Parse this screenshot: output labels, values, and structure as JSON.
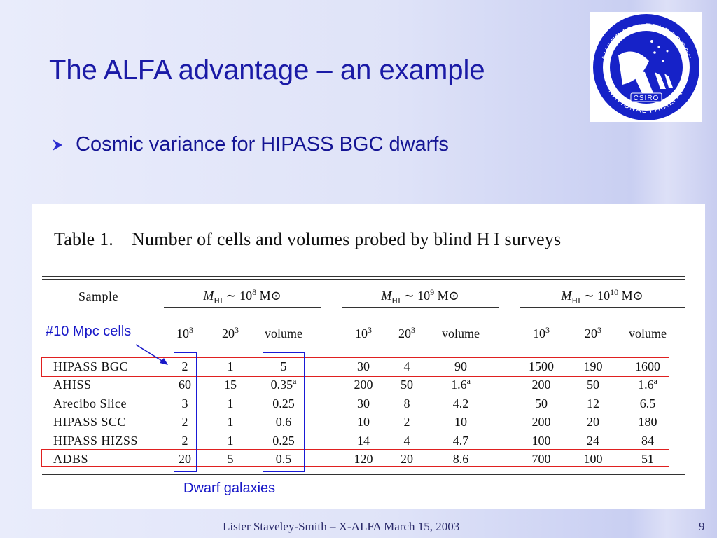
{
  "slide": {
    "title": "The ALFA advantage – an example",
    "bullet": "Cosmic variance for HIPASS BGC dwarfs",
    "footer": "Lister Staveley-Smith – X-ALFA March 15, 2003",
    "page_number": "9"
  },
  "logo": {
    "top_text": "AUSTRALIA TELESCOPE",
    "bottom_text": "NATIONAL FACILITY",
    "badge": "CSIRO"
  },
  "table": {
    "caption_label": "Table 1.",
    "caption_text": "Number of cells and volumes probed by blind H I surveys",
    "sample_header": "Sample",
    "groups": [
      {
        "label_prefix": "M",
        "label_sub": "HI",
        "label_mid": " ∼ 10",
        "label_exp": "8",
        "label_unit": " M⊙"
      },
      {
        "label_prefix": "M",
        "label_sub": "HI",
        "label_mid": " ∼ 10",
        "label_exp": "9",
        "label_unit": " M⊙"
      },
      {
        "label_prefix": "M",
        "label_sub": "HI",
        "label_mid": " ∼ 10",
        "label_exp": "10",
        "label_unit": " M⊙"
      }
    ],
    "subheaders": [
      {
        "base": "10",
        "exp": "3"
      },
      {
        "base": "20",
        "exp": "3"
      },
      {
        "base": "volume",
        "exp": ""
      }
    ],
    "rows": [
      {
        "sample": "HIPASS BGC",
        "cells": [
          [
            "2",
            ""
          ],
          [
            "1",
            ""
          ],
          [
            "5",
            ""
          ],
          [
            "30",
            ""
          ],
          [
            "4",
            ""
          ],
          [
            "90",
            ""
          ],
          [
            "1500",
            ""
          ],
          [
            "190",
            ""
          ],
          [
            "1600",
            ""
          ]
        ]
      },
      {
        "sample": "AHISS",
        "cells": [
          [
            "60",
            ""
          ],
          [
            "15",
            ""
          ],
          [
            "0.35",
            "a"
          ],
          [
            "200",
            ""
          ],
          [
            "50",
            ""
          ],
          [
            "1.6",
            "a"
          ],
          [
            "200",
            ""
          ],
          [
            "50",
            ""
          ],
          [
            "1.6",
            "a"
          ]
        ]
      },
      {
        "sample": "Arecibo Slice",
        "cells": [
          [
            "3",
            ""
          ],
          [
            "1",
            ""
          ],
          [
            "0.25",
            ""
          ],
          [
            "30",
            ""
          ],
          [
            "8",
            ""
          ],
          [
            "4.2",
            ""
          ],
          [
            "50",
            ""
          ],
          [
            "12",
            ""
          ],
          [
            "6.5",
            ""
          ]
        ]
      },
      {
        "sample": "HIPASS SCC",
        "cells": [
          [
            "2",
            ""
          ],
          [
            "1",
            ""
          ],
          [
            "0.6",
            ""
          ],
          [
            "10",
            ""
          ],
          [
            "2",
            ""
          ],
          [
            "10",
            ""
          ],
          [
            "200",
            ""
          ],
          [
            "20",
            ""
          ],
          [
            "180",
            ""
          ]
        ]
      },
      {
        "sample": "HIPASS HIZSS",
        "cells": [
          [
            "2",
            ""
          ],
          [
            "1",
            ""
          ],
          [
            "0.25",
            ""
          ],
          [
            "14",
            ""
          ],
          [
            "4",
            ""
          ],
          [
            "4.7",
            ""
          ],
          [
            "100",
            ""
          ],
          [
            "24",
            ""
          ],
          [
            "84",
            ""
          ]
        ]
      },
      {
        "sample": "ADBS",
        "cells": [
          [
            "20",
            ""
          ],
          [
            "5",
            ""
          ],
          [
            "0.5",
            ""
          ],
          [
            "120",
            ""
          ],
          [
            "20",
            ""
          ],
          [
            "8.6",
            ""
          ],
          [
            "700",
            ""
          ],
          [
            "100",
            ""
          ],
          [
            "51",
            ""
          ]
        ]
      }
    ]
  },
  "annotations": {
    "cells_note": "#10 Mpc cells",
    "dwarf_note": "Dwarf galaxies"
  },
  "colors": {
    "title": "#1a1aa6",
    "highlight_red": "#e02020",
    "highlight_blue": "#1a1ad6",
    "logo_blue": "#1622c8"
  }
}
